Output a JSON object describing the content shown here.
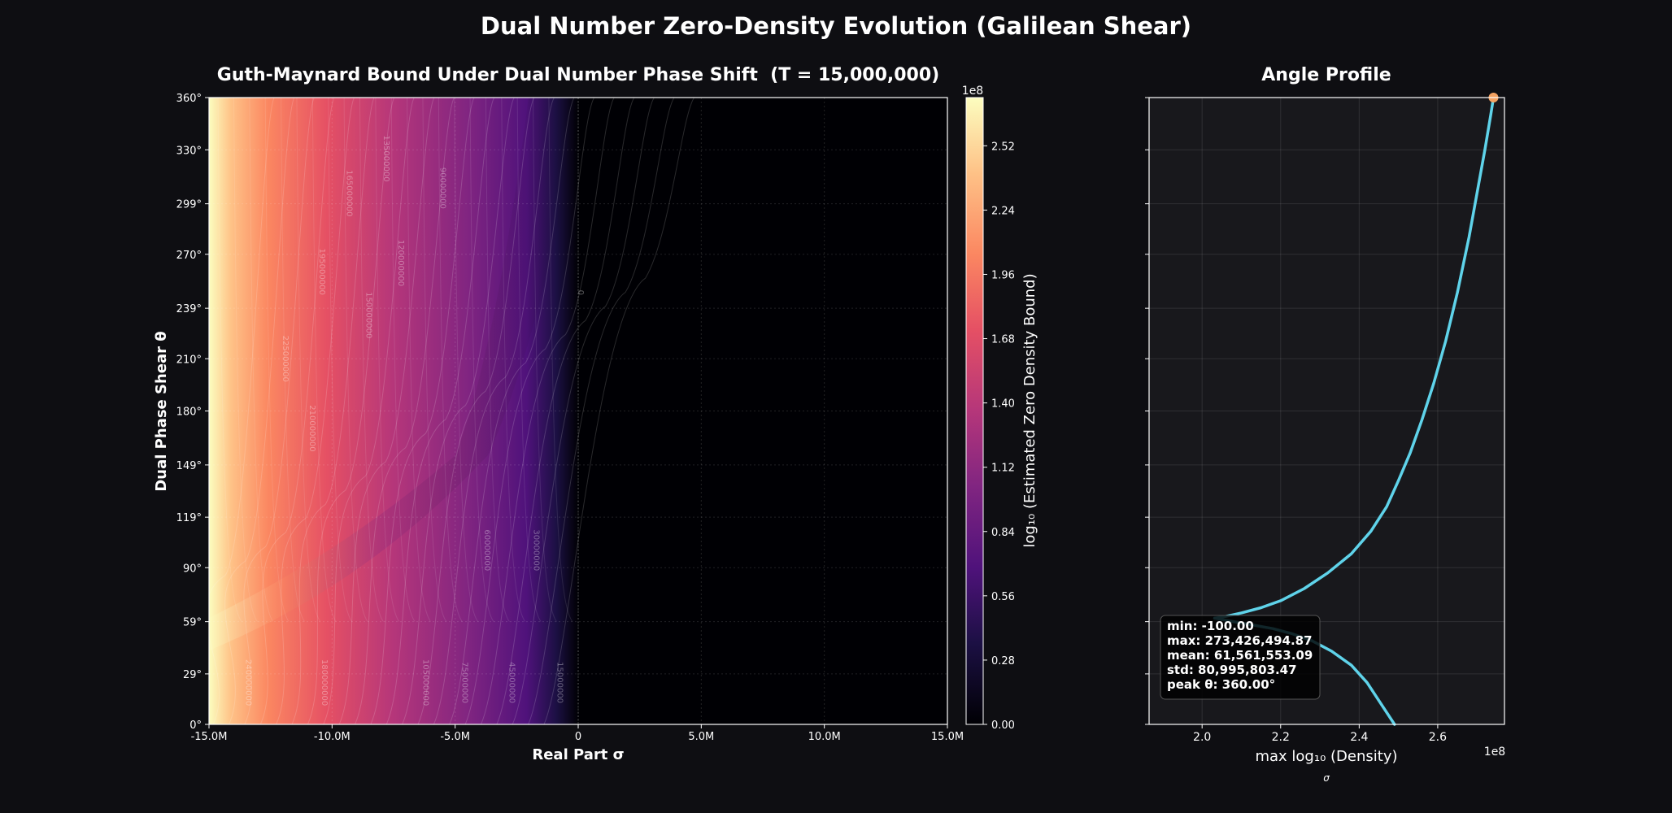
{
  "figure": {
    "suptitle": "Dual Number Zero-Density Evolution (Galilean Shear)"
  },
  "chart_data": [
    {
      "type": "heatmap",
      "title": "Guth-Maynard Bound Under Dual Number Phase Shift  (T = 15,000,000)",
      "xlabel": "Real Part σ",
      "ylabel": "Dual Phase Shear θ",
      "xlim": [
        -15000000,
        15000000
      ],
      "ylim": [
        0,
        360
      ],
      "x_ticks": [
        -15000000,
        -10000000,
        -5000000,
        0,
        5000000,
        10000000,
        15000000
      ],
      "x_tick_labels": [
        "-15.0M",
        "-10.0M",
        "-5.0M",
        "0",
        "5.0M",
        "10.0M",
        "15.0M"
      ],
      "y_ticks": [
        0,
        29,
        59,
        90,
        119,
        149,
        180,
        210,
        239,
        270,
        299,
        330,
        360
      ],
      "y_tick_labels": [
        "0°",
        "29°",
        "59°",
        "90°",
        "119°",
        "149°",
        "180°",
        "210°",
        "239°",
        "270°",
        "299°",
        "330°",
        "360°"
      ],
      "colormap": "magma",
      "grid": true,
      "colorbar": {
        "label": "log₁₀ (Estimated Zero Density Bound)",
        "offset_label": "1e8",
        "range": [
          0,
          2.73
        ],
        "ticks": [
          0.0,
          0.28,
          0.56,
          0.84,
          1.12,
          1.4,
          1.68,
          1.96,
          2.24,
          2.52
        ],
        "tick_labels": [
          "0.00",
          "0.28",
          "0.56",
          "0.84",
          "1.12",
          "1.40",
          "1.68",
          "1.96",
          "2.24",
          "2.52"
        ]
      },
      "contour_labels": [
        {
          "text": "0",
          "x": 0,
          "y": 248
        },
        {
          "text": "15000000",
          "x": -850000,
          "y": 24
        },
        {
          "text": "30000000",
          "x": -1800000,
          "y": 100
        },
        {
          "text": "45000000",
          "x": -2800000,
          "y": 24
        },
        {
          "text": "60000000",
          "x": -3800000,
          "y": 100
        },
        {
          "text": "75000000",
          "x": -4700000,
          "y": 24
        },
        {
          "text": "90000000",
          "x": -5600000,
          "y": 308
        },
        {
          "text": "105000000",
          "x": -6300000,
          "y": 24
        },
        {
          "text": "120000000",
          "x": -7300000,
          "y": 265
        },
        {
          "text": "135000000",
          "x": -7900000,
          "y": 325
        },
        {
          "text": "150000000",
          "x": -8600000,
          "y": 235
        },
        {
          "text": "165000000",
          "x": -9400000,
          "y": 305
        },
        {
          "text": "180000000",
          "x": -10400000,
          "y": 24
        },
        {
          "text": "195000000",
          "x": -10500000,
          "y": 260
        },
        {
          "text": "210000000",
          "x": -10900000,
          "y": 170
        },
        {
          "text": "225000000",
          "x": -12000000,
          "y": 210
        },
        {
          "text": "240000000",
          "x": -13500000,
          "y": 24
        }
      ]
    },
    {
      "type": "line",
      "title": "Angle Profile",
      "xlabel": "max log₁₀ (Density)",
      "x_offset_label": "1e8",
      "below_label": "σ",
      "xlim": [
        1.865,
        2.77
      ],
      "ylim": [
        0,
        360
      ],
      "x_ticks": [
        2.0,
        2.2,
        2.4,
        2.6
      ],
      "x_tick_labels": [
        "2.0",
        "2.2",
        "2.4",
        "2.6"
      ],
      "grid": true,
      "line_color": "#5fd3ea",
      "marker_color": "#f4a261",
      "series": [
        {
          "x": [
            2.032,
            2.06,
            2.1,
            2.15,
            2.2,
            2.26,
            2.32,
            2.38,
            2.43,
            2.47,
            2.5,
            2.53,
            2.56,
            2.59,
            2.62,
            2.65,
            2.68,
            2.7,
            2.72,
            2.735,
            2.742
          ],
          "y": [
            61,
            62,
            64,
            67,
            71,
            78,
            87,
            98,
            111,
            125,
            140,
            156,
            175,
            196,
            220,
            248,
            280,
            305,
            330,
            350,
            360
          ]
        },
        {
          "x": [
            2.032,
            2.08,
            2.13,
            2.18,
            2.23,
            2.28,
            2.33,
            2.38,
            2.42,
            2.455,
            2.49
          ],
          "y": [
            61,
            59,
            57,
            55,
            52,
            48,
            42,
            34,
            24,
            12,
            0
          ]
        }
      ],
      "peak_point": {
        "x": 2.742,
        "y": 360
      },
      "stats": {
        "min": "min: -100.00",
        "max": "max: 273,426,494.87",
        "mean": "mean: 61,561,553.09",
        "std": "std: 80,995,803.47",
        "peak": "peak θ: 360.00°"
      }
    }
  ]
}
